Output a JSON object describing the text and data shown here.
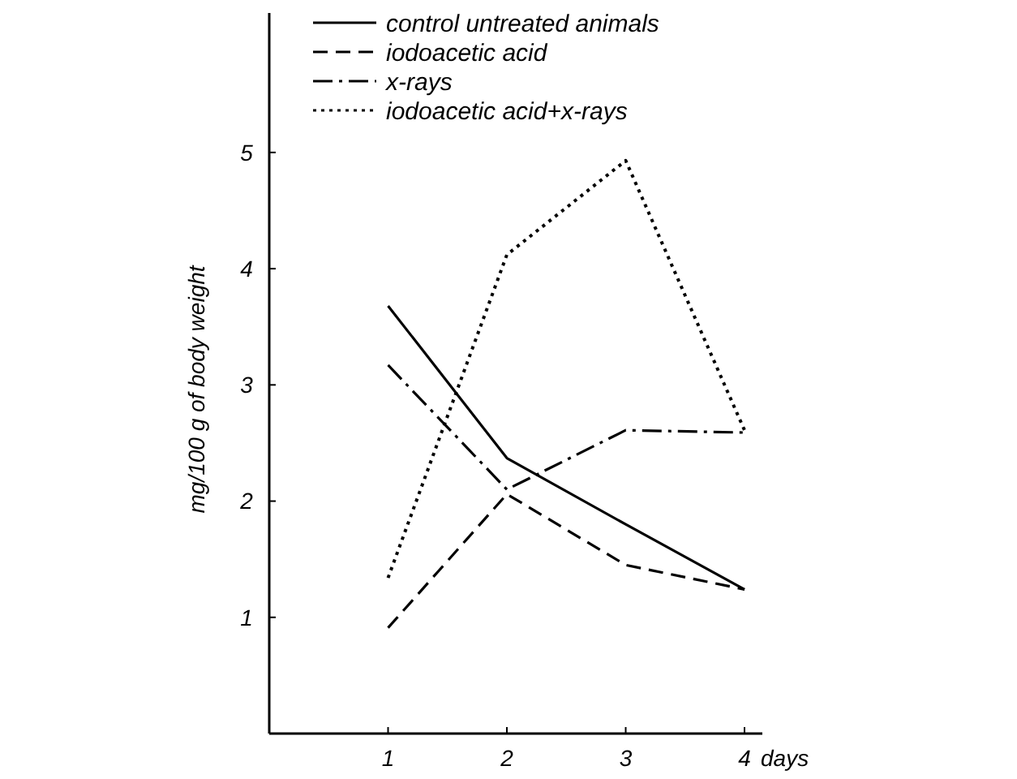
{
  "chart_data": {
    "type": "line",
    "xlabel": "days",
    "ylabel": "mg/100 g of body weight",
    "x": [
      1,
      2,
      3,
      4
    ],
    "xlim": [
      0,
      4.15
    ],
    "xticks": [
      1,
      2,
      3,
      4
    ],
    "ylim": [
      0,
      6.2
    ],
    "yticks": [
      1,
      2,
      3,
      4,
      5
    ],
    "legend": "top",
    "grid": false,
    "marker": "none",
    "series": [
      {
        "name": "control untreated animals",
        "color": "#000000",
        "line_style": "solid",
        "values": [
          3.68,
          2.37,
          1.8,
          1.24
        ]
      },
      {
        "name": "iodoacetic acid",
        "color": "#000000",
        "line_style": "dashed",
        "values": [
          0.91,
          2.06,
          1.45,
          1.24
        ]
      },
      {
        "name": "x-rays",
        "color": "#000000",
        "line_style": "dashdot",
        "values": [
          3.17,
          2.1,
          2.61,
          2.59
        ]
      },
      {
        "name": "iodoacetic acid+x-rays",
        "color": "#000000",
        "line_style": "dotted",
        "values": [
          1.34,
          4.12,
          4.93,
          2.61
        ]
      }
    ]
  }
}
